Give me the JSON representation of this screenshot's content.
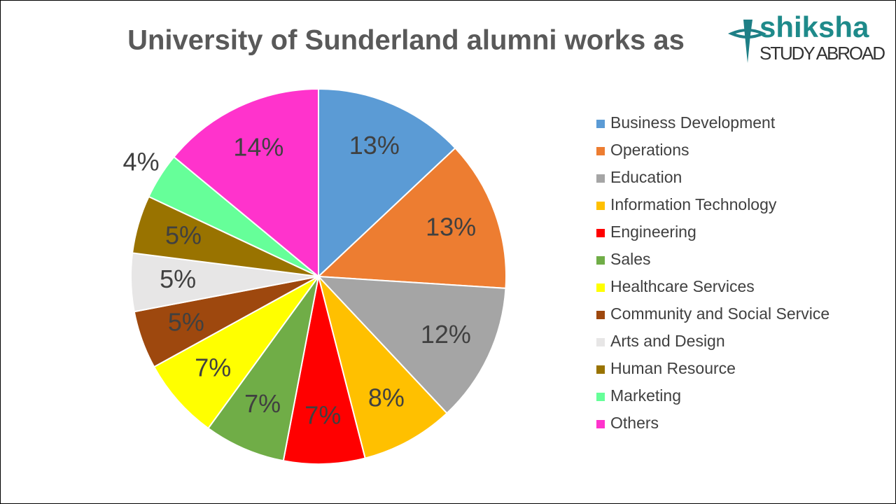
{
  "chart_data": {
    "type": "pie",
    "title": "University of Sunderland alumni works as",
    "categories": [
      "Business Development",
      "Operations",
      "Education",
      "Information Technology",
      "Engineering",
      "Sales",
      "Healthcare Services",
      "Community and Social Service",
      "Arts and Design",
      "Human Resource",
      "Marketing",
      "Others"
    ],
    "values": [
      13,
      13,
      12,
      8,
      7,
      7,
      7,
      5,
      5,
      5,
      4,
      14
    ],
    "value_labels": [
      "13%",
      "13%",
      "12%",
      "8%",
      "7%",
      "7%",
      "7%",
      "5%",
      "5%",
      "5%",
      "4%",
      "14%"
    ],
    "colors": [
      "#5b9bd5",
      "#ed7d31",
      "#a5a5a5",
      "#ffc000",
      "#ff0000",
      "#70ad47",
      "#ffff00",
      "#9e480e",
      "#e7e6e6",
      "#997300",
      "#66ff99",
      "#ff33cc"
    ],
    "legend": "right"
  },
  "logo": {
    "name": "shiksha",
    "tagline": "STUDY ABROAD"
  }
}
